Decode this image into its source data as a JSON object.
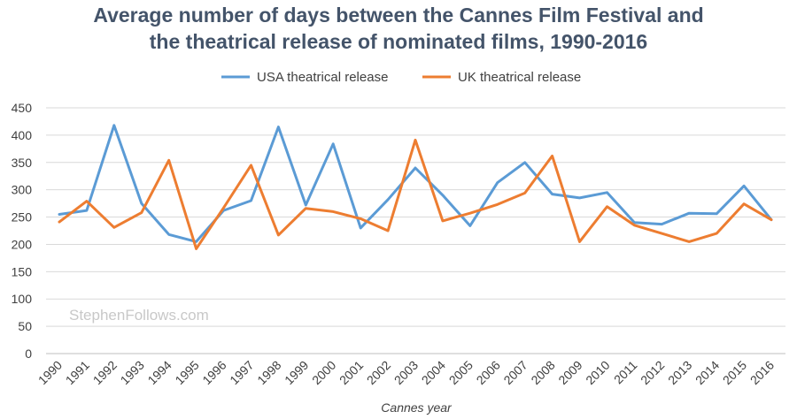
{
  "chart_data": {
    "type": "line",
    "title_line1": "Average number of days between the Cannes Film Festival and",
    "title_line2": "the theatrical release of nominated films, 1990-2016",
    "xlabel": "Cannes year",
    "ylabel": "",
    "ylim": [
      0,
      450
    ],
    "yticks": [
      0,
      50,
      100,
      150,
      200,
      250,
      300,
      350,
      400,
      450
    ],
    "grid": true,
    "legend_position": "top",
    "watermark": "StephenFollows.com",
    "categories": [
      "1990",
      "1991",
      "1992",
      "1993",
      "1994",
      "1995",
      "1996",
      "1997",
      "1998",
      "1999",
      "2000",
      "2001",
      "2002",
      "2003",
      "2004",
      "2005",
      "2006",
      "2007",
      "2008",
      "2009",
      "2010",
      "2011",
      "2012",
      "2013",
      "2014",
      "2015",
      "2016"
    ],
    "series": [
      {
        "name": "USA theatrical release",
        "color": "#5b9bd5",
        "values": [
          255,
          262,
          418,
          275,
          218,
          205,
          262,
          280,
          415,
          272,
          384,
          230,
          282,
          340,
          290,
          234,
          313,
          350,
          292,
          285,
          295,
          240,
          237,
          257,
          256,
          307,
          245
        ]
      },
      {
        "name": "UK theatrical release",
        "color": "#ed7d31",
        "values": [
          241,
          279,
          231,
          258,
          354,
          192,
          267,
          345,
          217,
          266,
          260,
          247,
          225,
          391,
          243,
          257,
          273,
          294,
          362,
          205,
          269,
          235,
          220,
          205,
          220,
          274,
          245
        ]
      }
    ]
  }
}
